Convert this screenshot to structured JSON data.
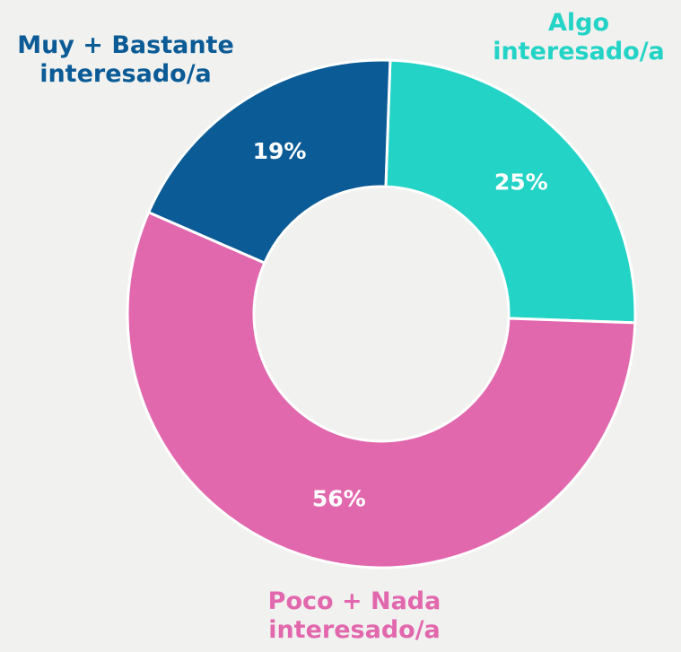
{
  "chart_data": {
    "type": "donut",
    "categories": [
      "Algo interesado/a",
      "Poco + Nada interesado/a",
      "Muy + Bastante interesado/a"
    ],
    "values": [
      25,
      56,
      19
    ],
    "value_labels": [
      "25%",
      "56%",
      "19%"
    ],
    "colors": [
      "#22d3c6",
      "#e268ae",
      "#0b5b96"
    ]
  }
}
